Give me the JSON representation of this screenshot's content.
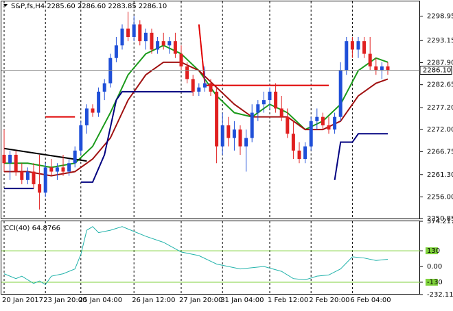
{
  "chart_data": {
    "type": "candlestick",
    "header": "S&P,fs,H4  2285.60 2286.60 2283.85 2286.10",
    "up_color": "#1f4fd8",
    "down_color": "#e02020",
    "categories": [
      "20 Jan 2017",
      null,
      null,
      null,
      null,
      null,
      null,
      "23 Jan 20:00",
      null,
      null,
      null,
      null,
      null,
      "25 Jan 04:00",
      null,
      null,
      null,
      null,
      null,
      null,
      null,
      null,
      "26 Jan 12:00",
      null,
      null,
      null,
      null,
      null,
      null,
      null,
      "27 Jan 20:00",
      null,
      null,
      null,
      null,
      null,
      null,
      "31 Jan 04:00",
      null,
      null,
      null,
      null,
      null,
      null,
      null,
      "1 Feb 12:00",
      null,
      null,
      null,
      null,
      null,
      null,
      "2 Feb 20:00",
      null,
      null,
      null,
      null,
      null,
      null,
      "6 Feb 04:00",
      null,
      null,
      null,
      null,
      null,
      null
    ],
    "ohlc": [
      [
        2266,
        2272,
        2262,
        2264
      ],
      [
        2264,
        2267,
        2260,
        2266
      ],
      [
        2266,
        2267,
        2261,
        2262
      ],
      [
        2262,
        2264,
        2259,
        2260
      ],
      [
        2260,
        2263,
        2259,
        2262
      ],
      [
        2262,
        2264,
        2258,
        2259
      ],
      [
        2259,
        2266,
        2253,
        2257
      ],
      [
        2257,
        2264,
        2256,
        2263
      ],
      [
        2263,
        2265,
        2261,
        2262
      ],
      [
        2262,
        2264,
        2260,
        2263
      ],
      [
        2263,
        2266,
        2261,
        2262
      ],
      [
        2262,
        2265,
        2261,
        2264
      ],
      [
        2264,
        2268,
        2263,
        2267
      ],
      [
        2267,
        2274,
        2266,
        2273
      ],
      [
        2273,
        2278,
        2271,
        2277
      ],
      [
        2277,
        2278,
        2275,
        2276
      ],
      [
        2276,
        2282,
        2275,
        2281
      ],
      [
        2281,
        2284,
        2279,
        2283
      ],
      [
        2283,
        2290,
        2282,
        2289
      ],
      [
        2289,
        2294,
        2288,
        2292
      ],
      [
        2292,
        2297,
        2291,
        2296
      ],
      [
        2296,
        2300,
        2293,
        2294
      ],
      [
        2294,
        2299,
        2293,
        2297
      ],
      [
        2297,
        2298,
        2292,
        2293
      ],
      [
        2293,
        2296,
        2291,
        2295
      ],
      [
        2295,
        2296,
        2290,
        2291
      ],
      [
        2291,
        2294,
        2290,
        2293
      ],
      [
        2293,
        2295,
        2291,
        2292
      ],
      [
        2292,
        2294,
        2290,
        2293
      ],
      [
        2293,
        2295,
        2289,
        2290
      ],
      [
        2290,
        2292,
        2286,
        2287
      ],
      [
        2287,
        2288,
        2283,
        2284
      ],
      [
        2284,
        2285,
        2280,
        2281
      ],
      [
        2281,
        2283,
        2280,
        2282
      ],
      [
        2282,
        2287,
        2281,
        2283
      ],
      [
        2283,
        2284,
        2280,
        2281
      ],
      [
        2281,
        2282,
        2264,
        2268
      ],
      [
        2268,
        2276,
        2266,
        2273
      ],
      [
        2273,
        2275,
        2268,
        2270
      ],
      [
        2270,
        2274,
        2267,
        2272
      ],
      [
        2272,
        2273,
        2266,
        2268
      ],
      [
        2268,
        2272,
        2262,
        2270
      ],
      [
        2270,
        2278,
        2269,
        2276
      ],
      [
        2276,
        2279,
        2274,
        2278
      ],
      [
        2278,
        2281,
        2276,
        2279
      ],
      [
        2279,
        2282,
        2277,
        2281
      ],
      [
        2281,
        2283,
        2276,
        2277
      ],
      [
        2277,
        2280,
        2274,
        2275
      ],
      [
        2275,
        2277,
        2270,
        2271
      ],
      [
        2271,
        2274,
        2265,
        2267
      ],
      [
        2267,
        2269,
        2264,
        2265
      ],
      [
        2265,
        2269,
        2264,
        2268
      ],
      [
        2268,
        2275,
        2267,
        2274
      ],
      [
        2274,
        2277,
        2272,
        2275
      ],
      [
        2275,
        2276,
        2272,
        2273
      ],
      [
        2273,
        2275,
        2271,
        2272
      ],
      [
        2272,
        2276,
        2271,
        2275
      ],
      [
        2275,
        2288,
        2274,
        2286
      ],
      [
        2286,
        2294,
        2285,
        2293
      ],
      [
        2293,
        2294,
        2289,
        2291
      ],
      [
        2291,
        2294,
        2289,
        2293
      ],
      [
        2293,
        2294,
        2289,
        2290
      ],
      [
        2290,
        2294,
        2286,
        2287
      ],
      [
        2287,
        2289,
        2285,
        2286
      ],
      [
        2286,
        2288,
        2284,
        2287
      ],
      [
        2287,
        2288,
        2285,
        2286
      ]
    ],
    "ylim": [
      2250.85,
      2302.3
    ],
    "yticks": [
      2298.95,
      2293.15,
      {
        "value": 2287.9,
        "label": "2287.90"
      },
      2282.65,
      {
        "value": 2277.2,
        "label": "2277.20"
      },
      {
        "value": 2272,
        "label": "2272.00"
      },
      2266.75,
      {
        "value": 2261.3,
        "label": "2261.30"
      },
      {
        "value": 2256,
        "label": "2256.00"
      },
      2250.85
    ],
    "last_price": {
      "value": 2286.1,
      "label": "2286.10"
    },
    "grid": true,
    "overlays": [
      {
        "color": "#1a9a1a",
        "x": [
          0,
          4,
          8,
          12,
          15,
          18,
          21,
          24,
          27,
          30,
          33,
          36,
          39,
          42,
          45,
          48,
          51,
          54,
          57,
          60,
          63,
          65
        ],
        "values": [
          2264,
          2264,
          2263,
          2264,
          2268,
          2276,
          2285,
          2290,
          2292,
          2290,
          2286,
          2280,
          2276,
          2275,
          2278,
          2276,
          2272,
          2274,
          2278,
          2286,
          2289,
          2288
        ]
      },
      {
        "color": "#a01010",
        "x": [
          0,
          4,
          8,
          12,
          15,
          18,
          21,
          24,
          27,
          30,
          33,
          36,
          39,
          42,
          45,
          48,
          51,
          54,
          57,
          60,
          63,
          65
        ],
        "values": [
          2262,
          2262,
          2261,
          2262,
          2265,
          2270,
          2279,
          2285,
          2288,
          2288,
          2286,
          2282,
          2278,
          2275,
          2275,
          2275,
          2272,
          2272,
          2274,
          2280,
          2283,
          2284
        ]
      },
      {
        "color": "#000080",
        "x": [
          0,
          5,
          6,
          13,
          15,
          17,
          19,
          20,
          32,
          33,
          56,
          57,
          59,
          60,
          62,
          65
        ],
        "values": [
          2258,
          2258,
          null,
          2259.5,
          2259.5,
          2266,
          2279,
          2281,
          2281,
          null,
          2260,
          2269,
          2269,
          2271,
          2271,
          2271
        ]
      },
      {
        "color": "#e00000",
        "x": [
          7,
          12,
          13,
          33,
          34,
          35,
          34,
          55
        ],
        "values": [
          2275,
          2275,
          null,
          2297,
          2283,
          null,
          2282.5,
          2282.5
        ]
      },
      {
        "color": "#000000",
        "x": [
          0,
          14
        ],
        "values": [
          2267.5,
          2264.5
        ]
      }
    ],
    "cci": {
      "title": "CCI(40) 64.8766",
      "color": "#20b2aa",
      "level_color": "#7fd23c",
      "ylim": [
        -232.1105,
        374.2177
      ],
      "yticks": [
        374.2177,
        130,
        {
          "value": 0,
          "label": "0.00"
        },
        -130,
        -232.1105
      ],
      "levels": [
        130,
        -130
      ],
      "x": [
        0,
        2,
        3,
        5,
        6,
        7,
        8,
        10,
        12,
        13,
        14,
        15,
        16,
        18,
        20,
        22,
        24,
        27,
        30,
        33,
        36,
        40,
        44,
        47,
        49,
        51,
        53,
        55,
        57,
        59,
        61,
        63,
        65
      ],
      "values": [
        -60,
        -100,
        -80,
        -140,
        -120,
        -150,
        -80,
        -60,
        -20,
        100,
        300,
        330,
        280,
        300,
        330,
        290,
        250,
        200,
        120,
        90,
        20,
        -20,
        0,
        -40,
        -100,
        -110,
        -80,
        -70,
        -20,
        80,
        70,
        50,
        60
      ]
    }
  }
}
